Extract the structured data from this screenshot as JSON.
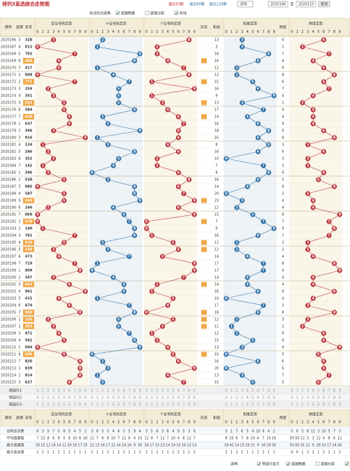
{
  "header": {
    "title": "排列3直选综合走势图",
    "links": [
      "最近50期",
      "最近80期",
      "最近120期"
    ],
    "select": "近年",
    "from": "2020166",
    "to_label": "至",
    "to": "2020215",
    "button": "查询"
  },
  "options": {
    "label": "标注形式选择:",
    "items": [
      {
        "text": "遗漏数据",
        "checked": true
      },
      {
        "text": "遗漏分层",
        "checked": false
      },
      {
        "text": "折线",
        "checked": true
      }
    ]
  },
  "columns": {
    "issue": "期号",
    "week": "星期",
    "number": "奖号",
    "zones": [
      "百位号码走势",
      "十位号码走势",
      "个位号码走势",
      "和尾走势",
      "跨度走势"
    ],
    "shape": "形态",
    "sum": "和值",
    "span": "跨度",
    "digits": [
      "0",
      "1",
      "2",
      "3",
      "4",
      "5",
      "6",
      "7",
      "8",
      "9"
    ]
  },
  "rows": [
    {
      "issue": "2020166",
      "week": 3,
      "number": "328",
      "digits": [
        3,
        2,
        8
      ],
      "sum": 13,
      "tail": 3,
      "span": 6
    },
    {
      "issue": "2020167",
      "week": 4,
      "number": "012",
      "digits": [
        0,
        1,
        2
      ],
      "sum": 3,
      "tail": 3,
      "span": 2
    },
    {
      "issue": "2020168",
      "week": 5,
      "number": "792",
      "digits": [
        7,
        9,
        2
      ],
      "sum": 18,
      "tail": 8,
      "span": 7
    },
    {
      "issue": "2020169",
      "week": 6,
      "number": "484",
      "digits": [
        4,
        8,
        4
      ],
      "sum": 16,
      "tail": 6,
      "span": 4
    },
    {
      "issue": "2020170",
      "week": 7,
      "number": "417",
      "digits": [
        4,
        1,
        7
      ],
      "sum": 12,
      "tail": 2,
      "span": 6
    },
    {
      "issue": "2020171",
      "week": 1,
      "number": "048",
      "digits": [
        0,
        4,
        8
      ],
      "sum": 12,
      "tail": 2,
      "span": 8
    },
    {
      "issue": "2020172",
      "week": 2,
      "number": "771",
      "digits": [
        7,
        7,
        1
      ],
      "sum": 15,
      "tail": 5,
      "span": 6
    },
    {
      "issue": "2020173",
      "week": 3,
      "number": "259",
      "digits": [
        2,
        5,
        9
      ],
      "sum": 16,
      "tail": 6,
      "span": 7
    },
    {
      "issue": "2020174",
      "week": 4,
      "number": "351",
      "digits": [
        3,
        5,
        1
      ],
      "sum": 9,
      "tail": 9,
      "span": 4
    },
    {
      "issue": "2020175",
      "week": 5,
      "number": "553",
      "digits": [
        5,
        5,
        3
      ],
      "sum": 13,
      "tail": 3,
      "span": 2
    },
    {
      "issue": "2020176",
      "week": 6,
      "number": "584",
      "digits": [
        5,
        8,
        4
      ],
      "sum": 17,
      "tail": 7,
      "span": 4
    },
    {
      "issue": "2020177",
      "week": 7,
      "number": "626",
      "digits": [
        6,
        2,
        6
      ],
      "sum": 14,
      "tail": 4,
      "span": 4
    },
    {
      "issue": "2020178",
      "week": 1,
      "number": "637",
      "digits": [
        6,
        3,
        7
      ],
      "sum": 16,
      "tail": 6,
      "span": 4
    },
    {
      "issue": "2020179",
      "week": 2,
      "number": "396",
      "digits": [
        3,
        9,
        6
      ],
      "sum": 18,
      "tail": 8,
      "span": 6
    },
    {
      "issue": "2020180",
      "week": 3,
      "number": "916",
      "digits": [
        9,
        1,
        6
      ],
      "sum": 16,
      "tail": 6,
      "span": 8
    },
    {
      "issue": "2020181",
      "week": 4,
      "number": "134",
      "digits": [
        1,
        3,
        4
      ],
      "sum": 8,
      "tail": 8,
      "span": 3
    },
    {
      "issue": "2020182",
      "week": 5,
      "number": "286",
      "digits": [
        2,
        8,
        6
      ],
      "sum": 16,
      "tail": 6,
      "span": 6
    },
    {
      "issue": "2020183",
      "week": 6,
      "number": "352",
      "digits": [
        3,
        5,
        2
      ],
      "sum": 10,
      "tail": 0,
      "span": 3
    },
    {
      "issue": "2020184",
      "week": 7,
      "number": "142",
      "digits": [
        1,
        4,
        2
      ],
      "sum": 7,
      "tail": 7,
      "span": 3
    },
    {
      "issue": "2020185",
      "week": 1,
      "number": "206",
      "digits": [
        2,
        0,
        6
      ],
      "sum": 8,
      "tail": 8,
      "span": 6
    },
    {
      "issue": "2020186",
      "week": 2,
      "number": "538",
      "digits": [
        5,
        3,
        8
      ],
      "sum": 16,
      "tail": 6,
      "span": 5
    },
    {
      "issue": "2020187",
      "week": 3,
      "number": "086",
      "digits": [
        0,
        8,
        6
      ],
      "sum": 14,
      "tail": 4,
      "span": 8
    },
    {
      "issue": "2020188",
      "week": 4,
      "number": "587",
      "digits": [
        5,
        8,
        7
      ],
      "sum": 20,
      "tail": 0,
      "span": 3
    },
    {
      "issue": "2020189",
      "week": 5,
      "number": "599",
      "digits": [
        5,
        9,
        9
      ],
      "sum": 23,
      "tail": 3,
      "span": 4
    },
    {
      "issue": "2020190",
      "week": 6,
      "number": "246",
      "digits": [
        2,
        4,
        6
      ],
      "sum": 12,
      "tail": 2,
      "span": 4
    },
    {
      "issue": "2020191",
      "week": 7,
      "number": "069",
      "digits": [
        0,
        6,
        9
      ],
      "sum": 15,
      "tail": 5,
      "span": 9
    },
    {
      "issue": "2020192",
      "week": 1,
      "number": "070",
      "digits": [
        0,
        7,
        0
      ],
      "sum": 7,
      "tail": 7,
      "span": 7
    },
    {
      "issue": "2020193",
      "week": 2,
      "number": "180",
      "digits": [
        1,
        8,
        0
      ],
      "sum": 9,
      "tail": 9,
      "span": 8
    },
    {
      "issue": "2020194",
      "week": 3,
      "number": "781",
      "digits": [
        7,
        8,
        1
      ],
      "sum": 16,
      "tail": 6,
      "span": 7
    },
    {
      "issue": "2020195",
      "week": 4,
      "number": "525",
      "digits": [
        5,
        2,
        5
      ],
      "sum": 12,
      "tail": 2,
      "span": 3
    },
    {
      "issue": "2020196",
      "week": 5,
      "number": "336",
      "digits": [
        3,
        3,
        6
      ],
      "sum": 12,
      "tail": 2,
      "span": 3
    },
    {
      "issue": "2020197",
      "week": 6,
      "number": "473",
      "digits": [
        4,
        7,
        3
      ],
      "sum": 14,
      "tail": 4,
      "span": 4
    },
    {
      "issue": "2020198",
      "week": 7,
      "number": "719",
      "digits": [
        7,
        1,
        9
      ],
      "sum": 17,
      "tail": 7,
      "span": 8
    },
    {
      "issue": "2020199",
      "week": 1,
      "number": "809",
      "digits": [
        8,
        0,
        9
      ],
      "sum": 17,
      "tail": 7,
      "span": 9
    },
    {
      "issue": "2020200",
      "week": 2,
      "number": "347",
      "digits": [
        3,
        4,
        7
      ],
      "sum": 14,
      "tail": 4,
      "span": 4
    },
    {
      "issue": "2020201",
      "week": 3,
      "number": "662",
      "digits": [
        6,
        6,
        2
      ],
      "sum": 14,
      "tail": 4,
      "span": 4
    },
    {
      "issue": "2020202",
      "week": 4,
      "number": "961",
      "digits": [
        9,
        6,
        1
      ],
      "sum": 16,
      "tail": 6,
      "span": 8
    },
    {
      "issue": "2020203",
      "week": 5,
      "number": "415",
      "digits": [
        4,
        1,
        5
      ],
      "sum": 10,
      "tail": 0,
      "span": 4
    },
    {
      "issue": "2020204",
      "week": 6,
      "number": "674",
      "digits": [
        6,
        7,
        4
      ],
      "sum": 17,
      "tail": 7,
      "span": 3
    },
    {
      "issue": "2020205",
      "week": 7,
      "number": "880",
      "digits": [
        8,
        8,
        0
      ],
      "sum": 16,
      "tail": 6,
      "span": 8
    },
    {
      "issue": "2020206",
      "week": 1,
      "number": "255",
      "digits": [
        2,
        5,
        5
      ],
      "sum": 12,
      "tail": 2,
      "span": 3
    },
    {
      "issue": "2020207",
      "week": 2,
      "number": "353",
      "digits": [
        3,
        5,
        3
      ],
      "sum": 11,
      "tail": 1,
      "span": 2
    },
    {
      "issue": "2020208",
      "week": 3,
      "number": "471",
      "digits": [
        4,
        7,
        1
      ],
      "sum": 12,
      "tail": 2,
      "span": 6
    },
    {
      "issue": "2020209",
      "week": 4,
      "number": "582",
      "digits": [
        5,
        8,
        2
      ],
      "sum": 15,
      "tail": 5,
      "span": 6
    },
    {
      "issue": "2020210",
      "week": 5,
      "number": "094",
      "digits": [
        0,
        9,
        4
      ],
      "sum": 13,
      "tail": 3,
      "span": 9
    },
    {
      "issue": "2020211",
      "week": 6,
      "number": "505",
      "digits": [
        5,
        0,
        5
      ],
      "sum": 10,
      "tail": 0,
      "span": 5
    },
    {
      "issue": "2020212",
      "week": 7,
      "number": "826",
      "digits": [
        8,
        2,
        6
      ],
      "sum": 16,
      "tail": 6,
      "span": 6
    },
    {
      "issue": "2020213",
      "week": 1,
      "number": "839",
      "digits": [
        8,
        3,
        9
      ],
      "sum": 20,
      "tail": 0,
      "span": 6
    },
    {
      "issue": "2020214",
      "week": 2,
      "number": "814",
      "digits": [
        8,
        1,
        4
      ],
      "sum": 13,
      "tail": 3,
      "span": 7
    },
    {
      "issue": "2020215",
      "week": 3,
      "number": "627",
      "digits": [
        6,
        2,
        7
      ],
      "sum": 15,
      "tail": 5,
      "span": 5
    }
  ],
  "preselect": [
    "预选行1",
    "预选行2",
    "预选行3"
  ],
  "stats": [
    {
      "label": "出现总次数",
      "zones": [
        [
          6,
          3,
          5,
          7,
          5,
          8,
          5,
          4,
          5,
          2
        ],
        [
          3,
          6,
          5,
          5,
          4,
          6,
          3,
          5,
          9,
          4
        ],
        [
          3,
          5,
          6,
          3,
          6,
          4,
          9,
          5,
          3,
          6
        ],
        [
          5,
          1,
          7,
          6,
          5,
          4,
          10,
          6,
          4,
          2
        ],
        [
          0,
          0,
          3,
          8,
          11,
          3,
          10,
          5,
          7,
          3
        ]
      ]
    },
    {
      "label": "平均遗漏值",
      "zones": [
        [
          7,
          12,
          8,
          6,
          8,
          5,
          8,
          10,
          8,
          16
        ],
        [
          12,
          7,
          8,
          8,
          10,
          7,
          12,
          8,
          4,
          10
        ],
        [
          12,
          8,
          7,
          12,
          7,
          10,
          4,
          8,
          12,
          7
        ],
        [
          8,
          25,
          6,
          7,
          8,
          10,
          4,
          7,
          10,
          16
        ],
        [
          50,
          50,
          12,
          5,
          3,
          12,
          4,
          8,
          6,
          12
        ]
      ]
    },
    {
      "label": "最大遗漏值",
      "zones": [
        [
          18,
          15,
          12,
          16,
          14,
          11,
          20,
          19,
          17,
          25
        ],
        [
          21,
          13,
          16,
          17,
          22,
          14,
          24,
          18,
          9,
          20
        ],
        [
          26,
          17,
          15,
          23,
          14,
          19,
          10,
          16,
          22,
          13
        ],
        [
          19,
          42,
          14,
          15,
          18,
          21,
          9,
          16,
          20,
          30
        ],
        [
          50,
          50,
          31,
          12,
          9,
          28,
          10,
          17,
          14,
          26
        ]
      ]
    },
    {
      "label": "最大连出值",
      "zones": [
        [
          1,
          1,
          1,
          1,
          2,
          1,
          2,
          1,
          1,
          1
        ],
        [
          1,
          1,
          1,
          1,
          1,
          2,
          1,
          1,
          2,
          1
        ],
        [
          1,
          1,
          2,
          1,
          1,
          1,
          2,
          1,
          1,
          2
        ],
        [
          2,
          1,
          2,
          1,
          1,
          1,
          2,
          2,
          1,
          1
        ],
        [
          0,
          0,
          1,
          2,
          2,
          1,
          2,
          1,
          1,
          1
        ]
      ]
    }
  ],
  "footer": {
    "label": "选择:",
    "items": [
      {
        "text": "预选行显示",
        "checked": true
      },
      {
        "text": "遗漏数据",
        "checked": true
      },
      {
        "text": "遗漏分层",
        "checked": false
      },
      {
        "text": "折线",
        "checked": true
      }
    ]
  }
}
